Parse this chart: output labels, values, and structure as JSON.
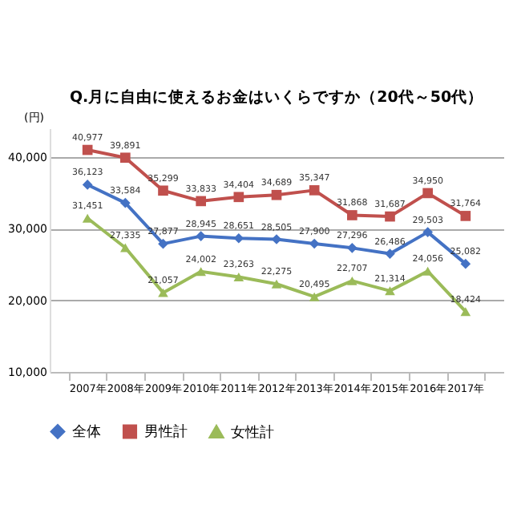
{
  "chart_data": {
    "type": "line",
    "title": "Q.月に自由に使えるお金はいくらですか（20代～50代）",
    "ylabel": "(円)",
    "categories": [
      "2007年",
      "2008年",
      "2009年",
      "2010年",
      "2011年",
      "2012年",
      "2013年",
      "2014年",
      "2015年",
      "2016年",
      "2017年"
    ],
    "ylim": [
      10000,
      44000
    ],
    "yticks": [
      {
        "value": 10000,
        "label": "10,000"
      },
      {
        "value": 20000,
        "label": "20,000"
      },
      {
        "value": 30000,
        "label": "30,000"
      },
      {
        "value": 40000,
        "label": "40,000"
      }
    ],
    "grid": "y",
    "legend": "bottom",
    "line_style": "solid",
    "series": [
      {
        "name": "全体",
        "color": "#4472c4",
        "marker": "diamond",
        "values": [
          36123,
          33584,
          27877,
          28945,
          28651,
          28505,
          27900,
          27296,
          26486,
          29503,
          25082
        ],
        "value_labels": [
          "36,123",
          "33,584",
          "27,877",
          "28,945",
          "28,651",
          "28,505",
          "27,900",
          "27,296",
          "26,486",
          "29,503",
          "25,082"
        ]
      },
      {
        "name": "男性計",
        "color": "#c0504d",
        "marker": "square",
        "values": [
          40977,
          39891,
          35299,
          33833,
          34404,
          34689,
          35347,
          31868,
          31687,
          34950,
          31764
        ],
        "value_labels": [
          "40,977",
          "39,891",
          "35,299",
          "33,833",
          "34,404",
          "34,689",
          "35,347",
          "31,868",
          "31,687",
          "34,950",
          "31,764"
        ]
      },
      {
        "name": "女性計",
        "color": "#9bbb59",
        "marker": "triangle",
        "values": [
          31451,
          27335,
          21057,
          24002,
          23263,
          22275,
          20495,
          22707,
          21314,
          24056,
          18424
        ],
        "value_labels": [
          "31,451",
          "27,335",
          "21,057",
          "24,002",
          "23,263",
          "22,275",
          "20,495",
          "22,707",
          "21,314",
          "24,056",
          "18,424"
        ]
      }
    ]
  }
}
